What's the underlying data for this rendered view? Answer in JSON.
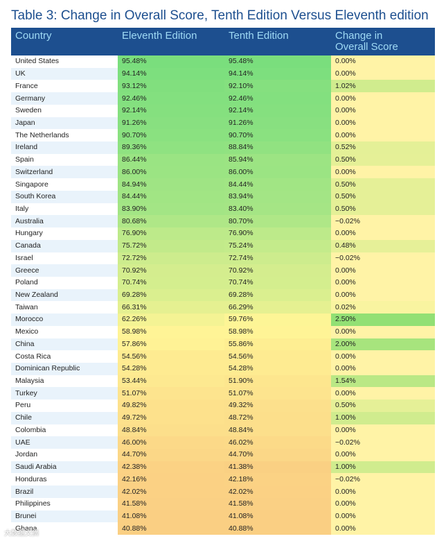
{
  "title": "Table 3: Change in Overall Score, Tenth Edition Versus Eleventh edition",
  "headers": {
    "country": "Country",
    "eleventh": "Eleventh Edition",
    "tenth": "Tenth Edition",
    "change_line1": "Change in",
    "change_line2": "Overall Score"
  },
  "rows": [
    {
      "country": "United States",
      "eleventh": "95.48%",
      "tenth": "95.48%",
      "change": "0.00%"
    },
    {
      "country": "UK",
      "eleventh": "94.14%",
      "tenth": "94.14%",
      "change": "0.00%"
    },
    {
      "country": "France",
      "eleventh": "93.12%",
      "tenth": "92.10%",
      "change": "1.02%"
    },
    {
      "country": "Germany",
      "eleventh": "92.46%",
      "tenth": "92.46%",
      "change": "0.00%"
    },
    {
      "country": "Sweden",
      "eleventh": "92.14%",
      "tenth": "92.14%",
      "change": "0.00%"
    },
    {
      "country": "Japan",
      "eleventh": "91.26%",
      "tenth": "91.26%",
      "change": "0.00%"
    },
    {
      "country": "The Netherlands",
      "eleventh": "90.70%",
      "tenth": "90.70%",
      "change": "0.00%"
    },
    {
      "country": "Ireland",
      "eleventh": "89.36%",
      "tenth": "88.84%",
      "change": "0.52%"
    },
    {
      "country": "Spain",
      "eleventh": "86.44%",
      "tenth": "85.94%",
      "change": "0.50%"
    },
    {
      "country": "Switzerland",
      "eleventh": "86.00%",
      "tenth": "86.00%",
      "change": "0.00%"
    },
    {
      "country": "Singapore",
      "eleventh": "84.94%",
      "tenth": "84.44%",
      "change": "0.50%"
    },
    {
      "country": "South Korea",
      "eleventh": "84.44%",
      "tenth": "83.94%",
      "change": "0.50%"
    },
    {
      "country": "Italy",
      "eleventh": "83.90%",
      "tenth": "83.40%",
      "change": "0.50%"
    },
    {
      "country": "Australia",
      "eleventh": "80.68%",
      "tenth": "80.70%",
      "change": "−0.02%"
    },
    {
      "country": "Hungary",
      "eleventh": "76.90%",
      "tenth": "76.90%",
      "change": "0.00%"
    },
    {
      "country": "Canada",
      "eleventh": "75.72%",
      "tenth": "75.24%",
      "change": "0.48%"
    },
    {
      "country": "Israel",
      "eleventh": "72.72%",
      "tenth": "72.74%",
      "change": "−0.02%"
    },
    {
      "country": "Greece",
      "eleventh": "70.92%",
      "tenth": "70.92%",
      "change": "0.00%"
    },
    {
      "country": "Poland",
      "eleventh": "70.74%",
      "tenth": "70.74%",
      "change": "0.00%"
    },
    {
      "country": "New Zealand",
      "eleventh": "69.28%",
      "tenth": "69.28%",
      "change": "0.00%"
    },
    {
      "country": "Taiwan",
      "eleventh": "66.31%",
      "tenth": "66.29%",
      "change": "0.02%"
    },
    {
      "country": "Morocco",
      "eleventh": "62.26%",
      "tenth": "59.76%",
      "change": "2.50%"
    },
    {
      "country": "Mexico",
      "eleventh": "58.98%",
      "tenth": "58.98%",
      "change": "0.00%"
    },
    {
      "country": "China",
      "eleventh": "57.86%",
      "tenth": "55.86%",
      "change": "2.00%"
    },
    {
      "country": "Costa Rica",
      "eleventh": "54.56%",
      "tenth": "54.56%",
      "change": "0.00%"
    },
    {
      "country": "Dominican Republic",
      "eleventh": "54.28%",
      "tenth": "54.28%",
      "change": "0.00%"
    },
    {
      "country": "Malaysia",
      "eleventh": "53.44%",
      "tenth": "51.90%",
      "change": "1.54%"
    },
    {
      "country": "Turkey",
      "eleventh": "51.07%",
      "tenth": "51.07%",
      "change": "0.00%"
    },
    {
      "country": "Peru",
      "eleventh": "49.82%",
      "tenth": "49.32%",
      "change": "0.50%"
    },
    {
      "country": "Chile",
      "eleventh": "49.72%",
      "tenth": "48.72%",
      "change": "1.00%"
    },
    {
      "country": "Colombia",
      "eleventh": "48.84%",
      "tenth": "48.84%",
      "change": "0.00%"
    },
    {
      "country": "UAE",
      "eleventh": "46.00%",
      "tenth": "46.02%",
      "change": "−0.02%"
    },
    {
      "country": "Jordan",
      "eleventh": "44.70%",
      "tenth": "44.70%",
      "change": "0.00%"
    },
    {
      "country": "Saudi Arabia",
      "eleventh": "42.38%",
      "tenth": "41.38%",
      "change": "1.00%"
    },
    {
      "country": "Honduras",
      "eleventh": "42.16%",
      "tenth": "42.18%",
      "change": "−0.02%"
    },
    {
      "country": "Brazil",
      "eleventh": "42.02%",
      "tenth": "42.02%",
      "change": "0.00%"
    },
    {
      "country": "Philippines",
      "eleventh": "41.58%",
      "tenth": "41.58%",
      "change": "0.00%"
    },
    {
      "country": "Brunei",
      "eleventh": "41.08%",
      "tenth": "41.08%",
      "change": "0.00%"
    },
    {
      "country": "Ghana",
      "eleventh": "40.88%",
      "tenth": "40.88%",
      "change": "0.00%"
    }
  ],
  "watermark": "大数据文摘",
  "colors": {
    "header_bg": "#1d4f8f",
    "header_text": "#9fdaf5",
    "title_text": "#1d4f8f"
  }
}
